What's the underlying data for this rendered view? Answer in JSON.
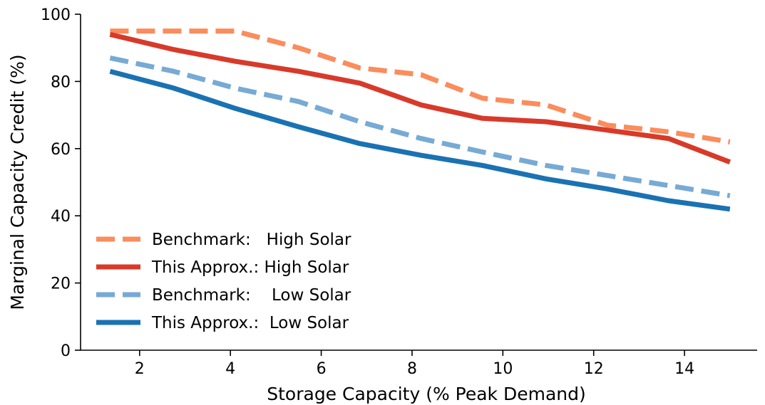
{
  "chart_data": {
    "type": "line",
    "title": "",
    "xlabel": "Storage Capacity (% Peak Demand)",
    "ylabel": "Marginal Capacity Credit (%)",
    "xlim": [
      0.7,
      15.6
    ],
    "ylim": [
      0,
      100
    ],
    "xticks": [
      2,
      4,
      6,
      8,
      10,
      12,
      14
    ],
    "yticks": [
      0,
      20,
      40,
      60,
      80,
      100
    ],
    "grid": false,
    "legend_position": "lower-left",
    "x": [
      1.35,
      2.75,
      4.1,
      5.5,
      6.85,
      8.2,
      9.55,
      10.95,
      12.3,
      13.65,
      15.0
    ],
    "series": [
      {
        "name": "Benchmark:   High Solar",
        "style": "dashed",
        "color": "#fb8c5c",
        "values": [
          95,
          95,
          95,
          90,
          84,
          82,
          75,
          73,
          67,
          65,
          62
        ]
      },
      {
        "name": "This Approx.: High Solar",
        "style": "solid",
        "color": "#d83a2a",
        "values": [
          94,
          89.5,
          86,
          83,
          79.5,
          73,
          69,
          68,
          65.5,
          63,
          56
        ]
      },
      {
        "name": "Benchmark:    Low Solar",
        "style": "dashed",
        "color": "#77aad4",
        "values": [
          87,
          83,
          78,
          74,
          68,
          63,
          59,
          55,
          52,
          49,
          46
        ]
      },
      {
        "name": "This Approx.:  Low Solar",
        "style": "solid",
        "color": "#1a72b3",
        "values": [
          83,
          78,
          72,
          66.5,
          61.5,
          58,
          55,
          51,
          48,
          44.5,
          42
        ]
      }
    ]
  }
}
